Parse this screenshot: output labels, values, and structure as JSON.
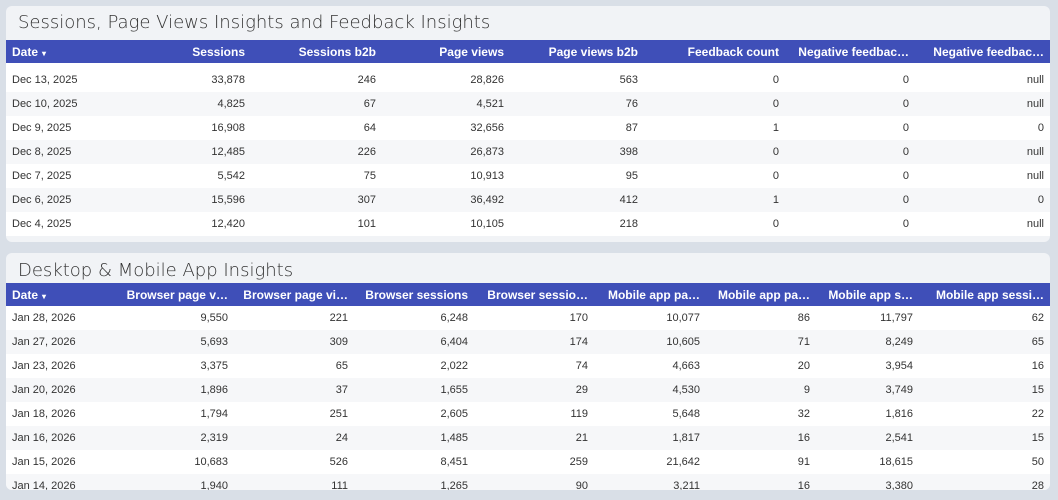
{
  "table1": {
    "title": "Sessions, Page Views Insights and Feedback Insights",
    "columns": [
      "Date",
      "Sessions",
      "Sessions b2b",
      "Page views",
      "Page views b2b",
      "Feedback count",
      "Negative feedbac…",
      "Negative feedbac…"
    ],
    "sort_indicator": "▾",
    "rows": [
      [
        "Dec 13, 2025",
        "33,878",
        "246",
        "28,826",
        "563",
        "0",
        "0",
        "null"
      ],
      [
        "Dec 10, 2025",
        "4,825",
        "67",
        "4,521",
        "76",
        "0",
        "0",
        "null"
      ],
      [
        "Dec 9, 2025",
        "16,908",
        "64",
        "32,656",
        "87",
        "1",
        "0",
        "0"
      ],
      [
        "Dec 8, 2025",
        "12,485",
        "226",
        "26,873",
        "398",
        "0",
        "0",
        "null"
      ],
      [
        "Dec 7, 2025",
        "5,542",
        "75",
        "10,913",
        "95",
        "0",
        "0",
        "null"
      ],
      [
        "Dec 6, 2025",
        "15,596",
        "307",
        "36,492",
        "412",
        "1",
        "0",
        "0"
      ],
      [
        "Dec 4, 2025",
        "12,420",
        "101",
        "10,105",
        "218",
        "0",
        "0",
        "null"
      ]
    ]
  },
  "table2": {
    "title": "Desktop & Mobile App Insights",
    "columns": [
      "Date",
      "Browser page v…",
      "Browser page vi…",
      "Browser sessions",
      "Browser sessio…",
      "Mobile app pa…",
      "Mobile app pa…",
      "Mobile app s…",
      "Mobile app sessi…"
    ],
    "sort_indicator": "▾",
    "rows": [
      [
        "Jan 28, 2026",
        "9,550",
        "221",
        "6,248",
        "170",
        "10,077",
        "86",
        "11,797",
        "62"
      ],
      [
        "Jan 27, 2026",
        "5,693",
        "309",
        "6,404",
        "174",
        "10,605",
        "71",
        "8,249",
        "65"
      ],
      [
        "Jan 23, 2026",
        "3,375",
        "65",
        "2,022",
        "74",
        "4,663",
        "20",
        "3,954",
        "16"
      ],
      [
        "Jan 20, 2026",
        "1,896",
        "37",
        "1,655",
        "29",
        "4,530",
        "9",
        "3,749",
        "15"
      ],
      [
        "Jan 18, 2026",
        "1,794",
        "251",
        "2,605",
        "119",
        "5,648",
        "32",
        "1,816",
        "22"
      ],
      [
        "Jan 16, 2026",
        "2,319",
        "24",
        "1,485",
        "21",
        "1,817",
        "16",
        "2,541",
        "15"
      ],
      [
        "Jan 15, 2026",
        "10,683",
        "526",
        "8,451",
        "259",
        "21,642",
        "91",
        "18,615",
        "50"
      ],
      [
        "Jan 14, 2026",
        "1,940",
        "111",
        "1,265",
        "90",
        "3,211",
        "16",
        "3,380",
        "28"
      ]
    ]
  },
  "colors": {
    "header": "#3f4fb8",
    "background": "#d9dfe7"
  }
}
